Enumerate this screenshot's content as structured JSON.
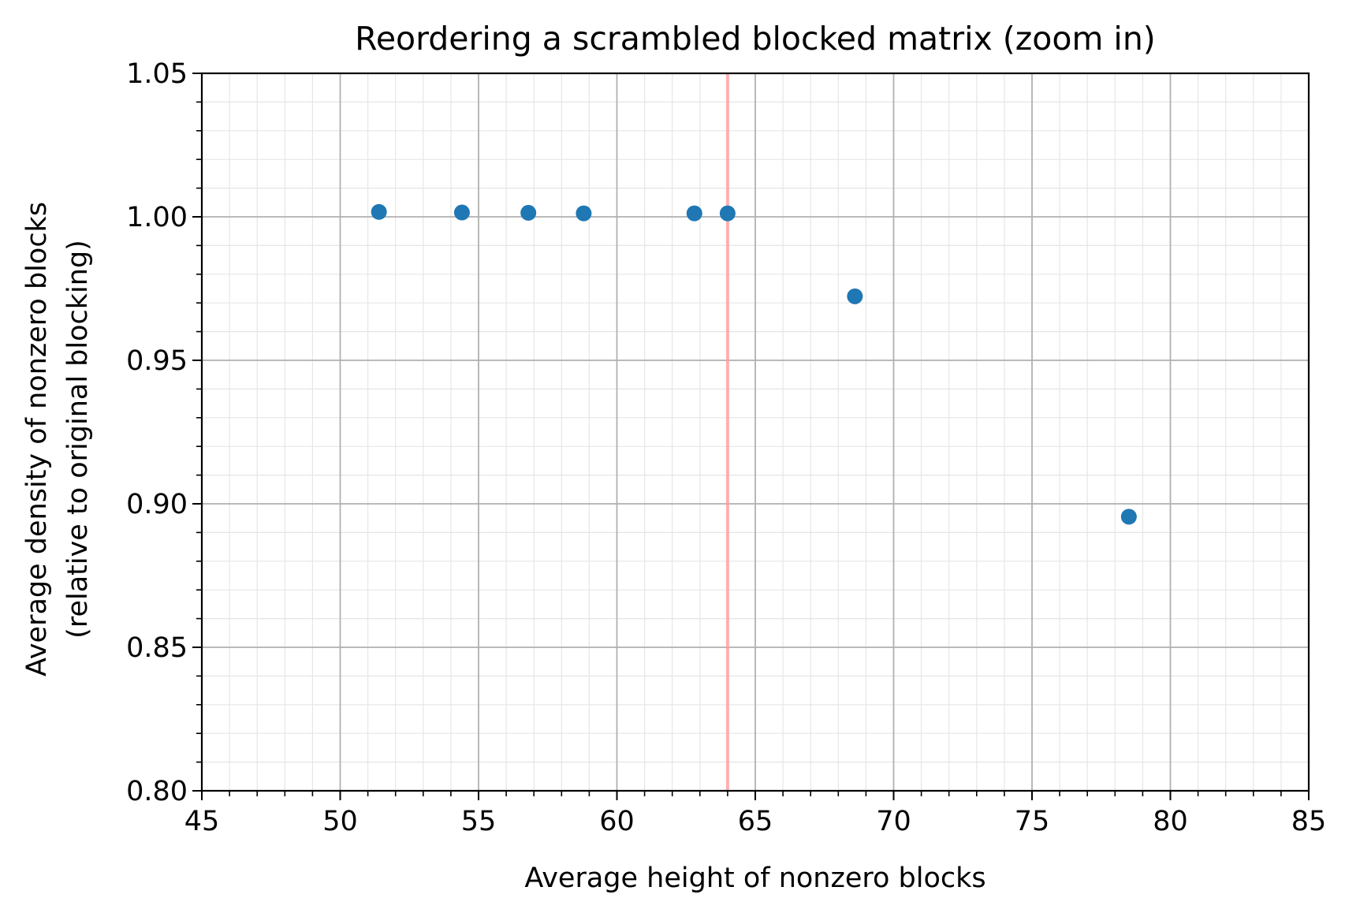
{
  "chart_data": {
    "type": "scatter",
    "title": "Reordering a scrambled blocked matrix (zoom in)",
    "xlabel": "Average height of nonzero blocks",
    "ylabel_line1": "Average density of nonzero blocks",
    "ylabel_line2": "(relative to original blocking)",
    "xlim": [
      45,
      85
    ],
    "ylim": [
      0.8,
      1.05
    ],
    "x_ticks": [
      45,
      50,
      55,
      60,
      65,
      70,
      75,
      80,
      85
    ],
    "x_tick_labels": [
      "45",
      "50",
      "55",
      "60",
      "65",
      "70",
      "75",
      "80",
      "85"
    ],
    "y_ticks": [
      0.8,
      0.85,
      0.9,
      0.95,
      1.0,
      1.05
    ],
    "y_tick_labels": [
      "0.80",
      "0.85",
      "0.90",
      "0.95",
      "1.00",
      "1.05"
    ],
    "x_minor_step": 1,
    "y_minor_step": 0.01,
    "grid": "major and minor",
    "series": [
      {
        "color": "#1f77b4",
        "points": [
          {
            "x": 51.4,
            "y": 1.0017
          },
          {
            "x": 54.4,
            "y": 1.0015
          },
          {
            "x": 56.8,
            "y": 1.0014
          },
          {
            "x": 58.8,
            "y": 1.0012
          },
          {
            "x": 62.8,
            "y": 1.0012
          },
          {
            "x": 64.0,
            "y": 1.0012
          },
          {
            "x": 68.6,
            "y": 0.9723
          },
          {
            "x": 78.5,
            "y": 0.8955
          }
        ]
      }
    ],
    "reference_line": {
      "orientation": "vertical",
      "x": 64,
      "color": "#ff9999"
    }
  }
}
